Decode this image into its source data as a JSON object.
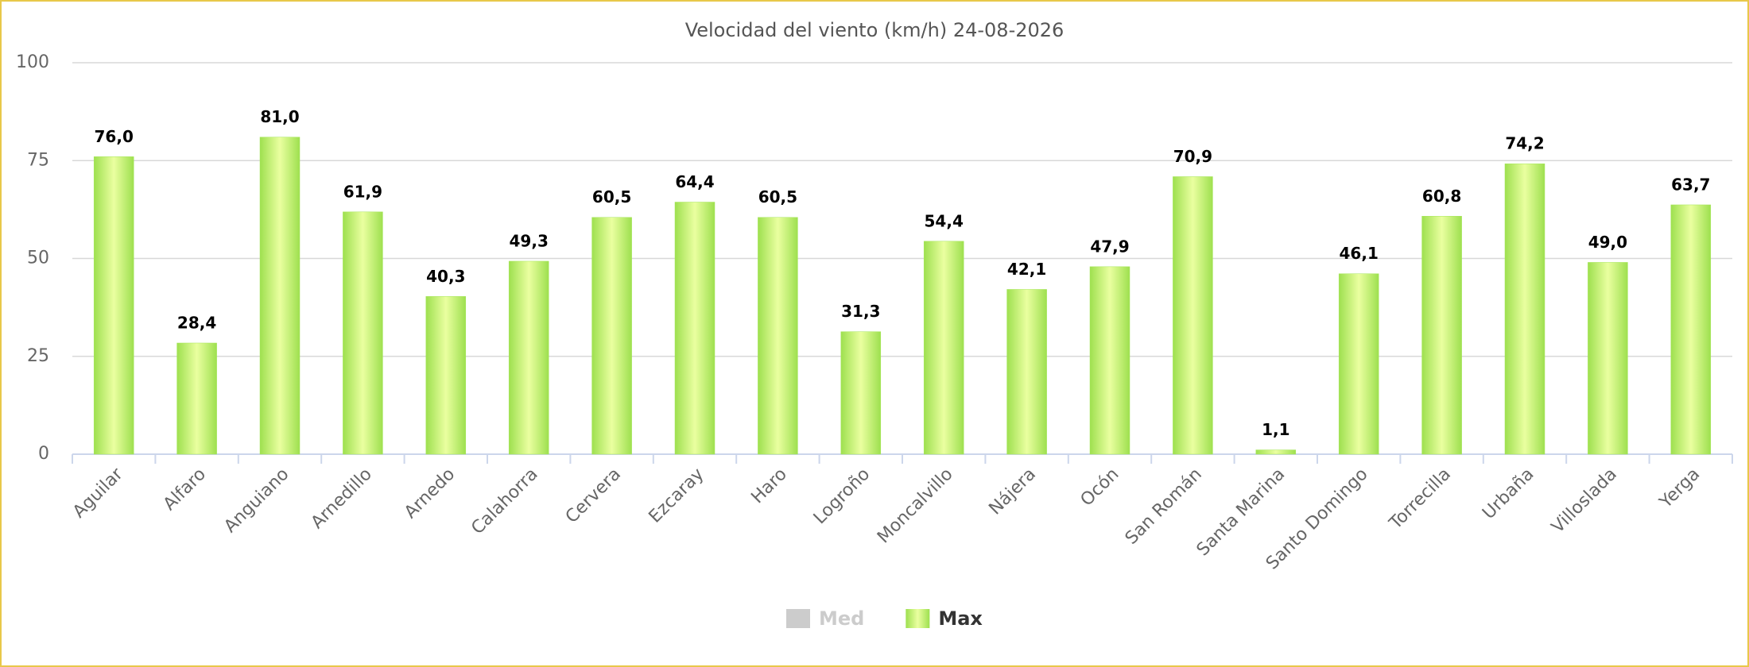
{
  "chart_data": {
    "type": "bar",
    "title": "Velocidad del viento (km/h) 24-08-2026",
    "categories": [
      "Aguilar",
      "Alfaro",
      "Anguiano",
      "Arnedillo",
      "Arnedo",
      "Calahorra",
      "Cervera",
      "Ezcaray",
      "Haro",
      "Logroño",
      "Moncalvillo",
      "Nájera",
      "Ocón",
      "San Román",
      "Santa Marina",
      "Santo Domingo",
      "Torrecilla",
      "Urbaña",
      "Villoslada",
      "Yerga"
    ],
    "series": [
      {
        "name": "Med",
        "color": "#cccccc",
        "visible": false
      },
      {
        "name": "Max",
        "color": "#a6e65a",
        "visible": true,
        "values": [
          76.0,
          28.4,
          81.0,
          61.9,
          40.3,
          49.3,
          60.5,
          64.4,
          60.5,
          31.3,
          54.4,
          42.1,
          47.9,
          70.9,
          1.1,
          46.1,
          60.8,
          74.2,
          49.0,
          63.7
        ],
        "value_labels": [
          "76,0",
          "28,4",
          "81,0",
          "61,9",
          "40,3",
          "49,3",
          "60,5",
          "64,4",
          "60,5",
          "31,3",
          "54,4",
          "42,1",
          "47,9",
          "70,9",
          "1,1",
          "46,1",
          "60,8",
          "74,2",
          "49,0",
          "63,7"
        ]
      }
    ],
    "ylim": [
      0,
      100
    ],
    "yticks": [
      0,
      25,
      50,
      75,
      100
    ],
    "grid": true
  }
}
